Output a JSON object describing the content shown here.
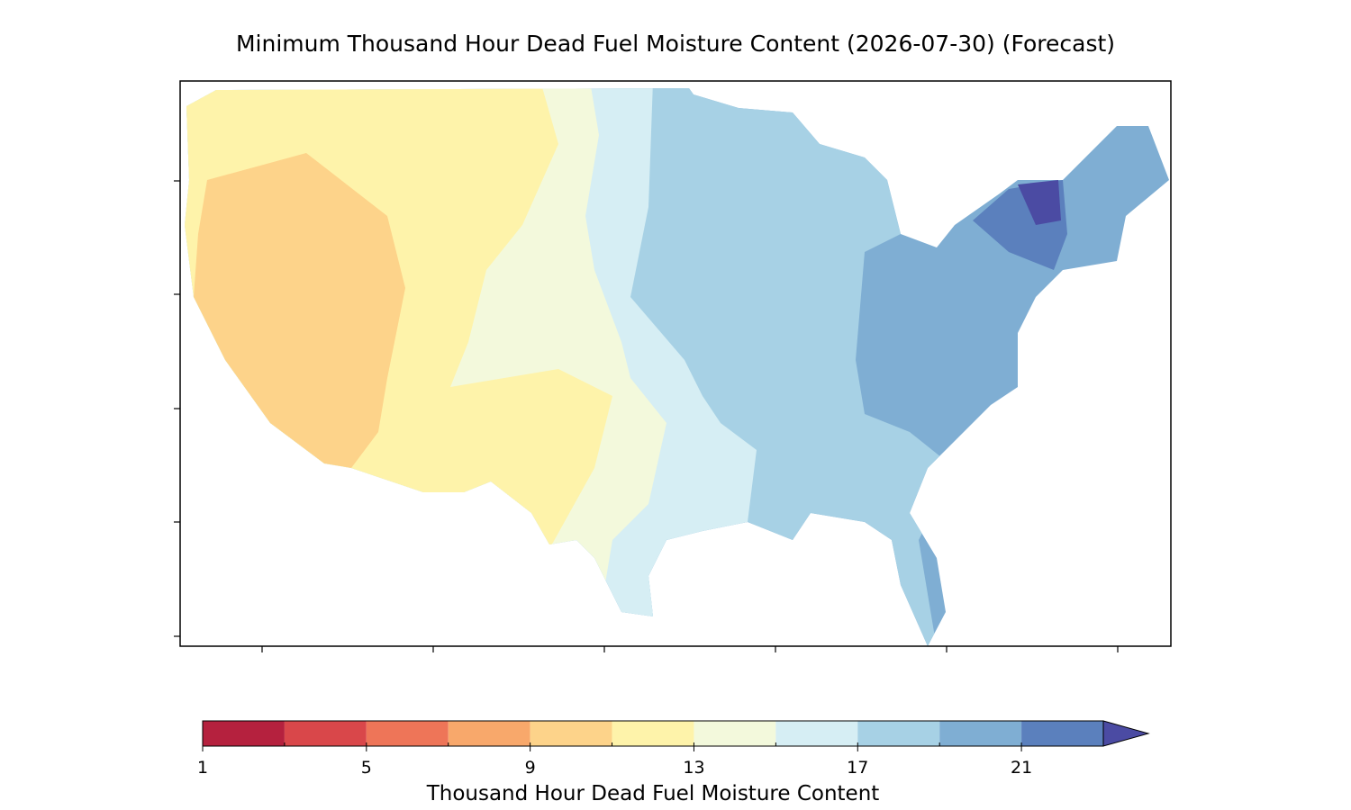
{
  "title": "Minimum Thousand Hour Dead Fuel Moisture Content (2026-07-30) (Forecast)",
  "colorbar": {
    "label": "Thousand Hour Dead Fuel Moisture Content",
    "levels": [
      1,
      3,
      5,
      7,
      9,
      11,
      13,
      15,
      17,
      19,
      21,
      23
    ],
    "colors": [
      "#b5213e",
      "#d9474a",
      "#ee7558",
      "#f8a86b",
      "#fdd38a",
      "#fef3aa",
      "#f3f9dc",
      "#d6eef4",
      "#a7d1e5",
      "#7faed3",
      "#5b80bd"
    ],
    "extend_color": "#4b4ba3",
    "ticks": [
      1,
      5,
      9,
      13,
      17,
      21
    ]
  }
}
